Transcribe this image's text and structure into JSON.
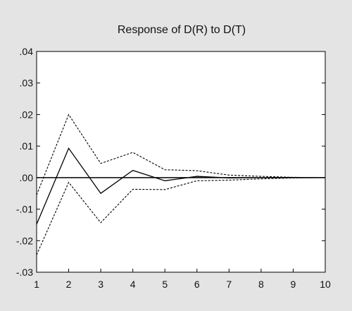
{
  "chart_data": {
    "type": "line",
    "title": "Response of D(R) to D(T)",
    "xlabel": "",
    "ylabel": "",
    "x": [
      1,
      2,
      3,
      4,
      5,
      6,
      7,
      8,
      9,
      10
    ],
    "xlim": [
      1,
      10
    ],
    "ylim": [
      -0.03,
      0.04
    ],
    "x_ticks": [
      "1",
      "2",
      "3",
      "4",
      "5",
      "6",
      "7",
      "8",
      "9",
      "10"
    ],
    "y_ticks": [
      {
        "value": 0.04,
        "label": ".04"
      },
      {
        "value": 0.03,
        "label": ".03"
      },
      {
        "value": 0.02,
        "label": ".02"
      },
      {
        "value": 0.01,
        "label": ".01"
      },
      {
        "value": 0.0,
        "label": ".00"
      },
      {
        "value": -0.01,
        "label": "-.01"
      },
      {
        "value": -0.02,
        "label": "-.02"
      },
      {
        "value": -0.03,
        "label": "-.03"
      }
    ],
    "zero_line": true,
    "grid": false,
    "legend": "none",
    "series": [
      {
        "style": "solid",
        "color": "#000000",
        "values": [
          -0.0148,
          0.0093,
          -0.005,
          0.0023,
          -0.001,
          0.0004,
          -0.0001,
          0.0,
          0.0,
          0.0
        ]
      },
      {
        "style": "dashed",
        "color": "#000000",
        "values": [
          -0.0055,
          0.02,
          0.0045,
          0.008,
          0.0025,
          0.0022,
          0.0008,
          0.0004,
          0.0001,
          0.0
        ]
      },
      {
        "style": "dashed",
        "color": "#000000",
        "values": [
          -0.0245,
          -0.0015,
          -0.0143,
          -0.0037,
          -0.0038,
          -0.001,
          -0.0008,
          -0.0004,
          -0.0001,
          0.0
        ]
      }
    ]
  }
}
